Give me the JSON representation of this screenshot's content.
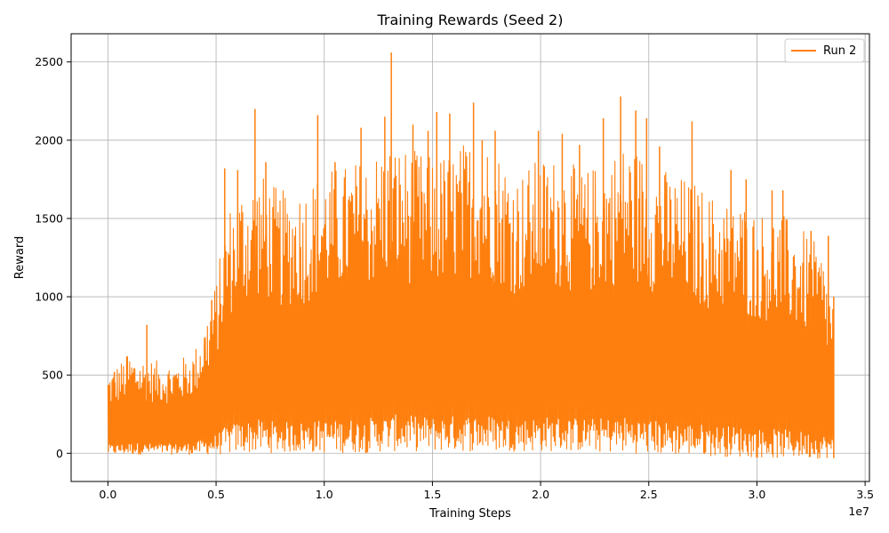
{
  "chart_data": {
    "type": "line",
    "title": "Training Rewards (Seed 2)",
    "xlabel": "Training Steps",
    "ylabel": "Reward",
    "x_offset_label": "1e7",
    "xlim": [
      -0.17,
      3.52
    ],
    "ylim": [
      -180,
      2680
    ],
    "x_ticks": [
      0.0,
      0.5,
      1.0,
      1.5,
      2.0,
      2.5,
      3.0,
      3.5
    ],
    "x_tick_labels": [
      "0.0",
      "0.5",
      "1.0",
      "1.5",
      "2.0",
      "2.5",
      "3.0",
      "3.5"
    ],
    "y_ticks": [
      0,
      500,
      1000,
      1500,
      2000,
      2500
    ],
    "y_tick_labels": [
      "0",
      "500",
      "1000",
      "1500",
      "2000",
      "2500"
    ],
    "grid": true,
    "legend_position": "top-right",
    "series": [
      {
        "name": "Run 2",
        "color": "#ff7f0e",
        "x": [
          0.0,
          0.1,
          0.2,
          0.3,
          0.4,
          0.45,
          0.5,
          0.55,
          0.6,
          0.7,
          0.8,
          0.9,
          1.0,
          1.1,
          1.2,
          1.3,
          1.4,
          1.5,
          1.6,
          1.7,
          1.8,
          1.9,
          2.0,
          2.1,
          2.2,
          2.3,
          2.4,
          2.5,
          2.6,
          2.7,
          2.8,
          2.9,
          3.0,
          3.1,
          3.2,
          3.3,
          3.355
        ],
        "upper": [
          520,
          640,
          600,
          580,
          660,
          860,
          1100,
          1550,
          1700,
          1800,
          1680,
          1720,
          1820,
          1850,
          1900,
          2000,
          1950,
          1900,
          1950,
          2050,
          1950,
          1800,
          1900,
          1900,
          1800,
          1900,
          2000,
          1900,
          1800,
          1750,
          1650,
          1650,
          1550,
          1550,
          1450,
          1300,
          1000
        ],
        "lower": [
          -10,
          -10,
          -10,
          -10,
          -10,
          -10,
          -10,
          -10,
          0,
          0,
          0,
          0,
          0,
          0,
          0,
          10,
          10,
          10,
          10,
          10,
          10,
          10,
          10,
          10,
          10,
          0,
          0,
          -10,
          -15,
          -15,
          -20,
          -25,
          -30,
          -35,
          -35,
          -35,
          -30
        ],
        "spikes": [
          [
            0.03,
            520
          ],
          [
            0.09,
            620
          ],
          [
            0.18,
            820
          ],
          [
            0.48,
            980
          ],
          [
            0.54,
            1820
          ],
          [
            0.6,
            1810
          ],
          [
            0.68,
            2200
          ],
          [
            0.73,
            1860
          ],
          [
            0.97,
            2160
          ],
          [
            1.05,
            1860
          ],
          [
            1.17,
            2080
          ],
          [
            1.28,
            2150
          ],
          [
            1.31,
            2560
          ],
          [
            1.41,
            2100
          ],
          [
            1.48,
            2060
          ],
          [
            1.52,
            2180
          ],
          [
            1.58,
            2170
          ],
          [
            1.69,
            2240
          ],
          [
            1.73,
            2000
          ],
          [
            1.79,
            2060
          ],
          [
            1.99,
            2060
          ],
          [
            2.1,
            2040
          ],
          [
            2.18,
            1970
          ],
          [
            2.29,
            2140
          ],
          [
            2.37,
            2280
          ],
          [
            2.44,
            2190
          ],
          [
            2.49,
            2140
          ],
          [
            2.55,
            1960
          ],
          [
            2.7,
            2120
          ],
          [
            2.88,
            1810
          ],
          [
            2.95,
            1750
          ],
          [
            3.07,
            1680
          ],
          [
            3.12,
            1680
          ],
          [
            3.25,
            1420
          ],
          [
            3.33,
            1390
          ]
        ]
      }
    ]
  }
}
